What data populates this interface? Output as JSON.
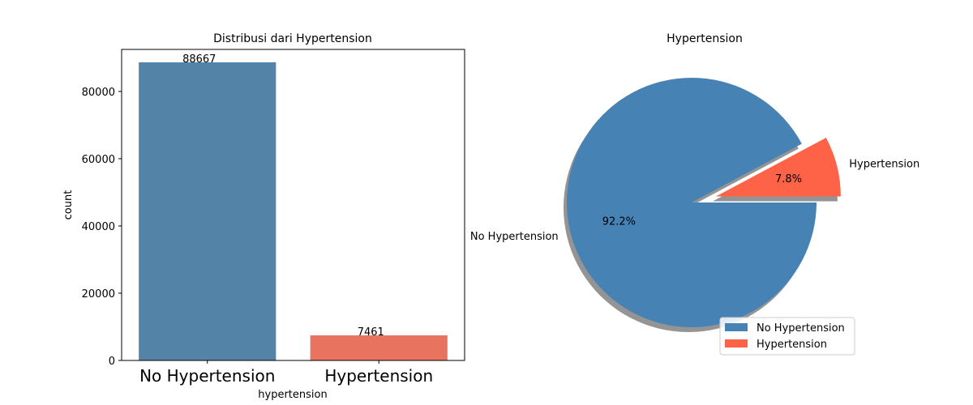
{
  "chart_data": [
    {
      "type": "bar",
      "title": "Distribusi dari Hypertension",
      "xlabel": "hypertension",
      "ylabel": "count",
      "categories": [
        "No Hypertension",
        "Hypertension"
      ],
      "values": [
        88667,
        7461
      ],
      "value_labels": [
        "88667",
        "7461"
      ],
      "colors": [
        "#5384a8",
        "#e8735e"
      ],
      "ylim": [
        0,
        92500
      ],
      "yticks": [
        0,
        20000,
        40000,
        60000,
        80000
      ],
      "ytick_labels": [
        "0",
        "20000",
        "40000",
        "60000",
        "80000"
      ],
      "grid": false
    },
    {
      "type": "pie",
      "title": "Hypertension",
      "labels": [
        "No Hypertension",
        "Hypertension"
      ],
      "values": [
        92.2,
        7.8
      ],
      "pct_labels": [
        "92.2%",
        "7.8%"
      ],
      "colors": [
        "#4682b4",
        "#ff6347"
      ],
      "explode": [
        0,
        0.2
      ],
      "shadow": true,
      "legend": {
        "placement": "lower-right",
        "entries": [
          "No Hypertension",
          "Hypertension"
        ]
      }
    }
  ]
}
